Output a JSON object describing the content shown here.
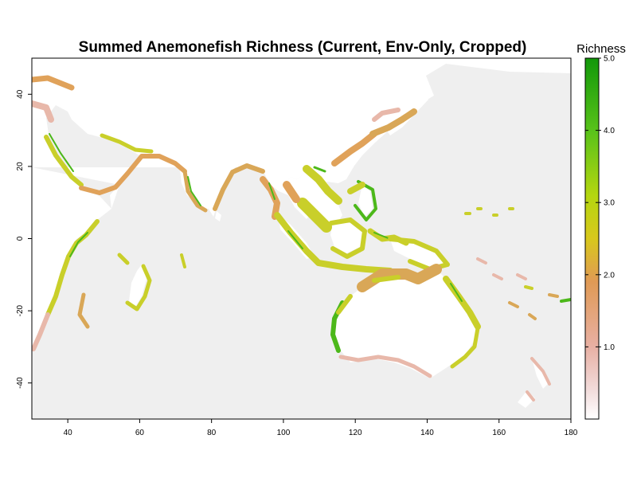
{
  "chart_data": {
    "type": "heatmap",
    "title": "Summed Anemonefish Richness (Current, Env-Only, Cropped)",
    "x_ticks": [
      40,
      60,
      80,
      100,
      120,
      140,
      160,
      180
    ],
    "y_ticks": [
      -40,
      -20,
      0,
      20,
      40
    ],
    "xlim": [
      30,
      180
    ],
    "ylim": [
      -50,
      50
    ],
    "legend": {
      "title": "Richness",
      "ticks": [
        "1.0",
        "2.0",
        "3.0",
        "4.0",
        "5.0"
      ],
      "range": [
        0,
        5
      ],
      "colors": [
        "#ffffff",
        "#f5e0df",
        "#e8a38f",
        "#e0a060",
        "#d9c51f",
        "#b8d80f",
        "#6ccc18",
        "#179e0b"
      ]
    },
    "colors": {
      "ocean": "#efefef",
      "land": "#ffffff",
      "low": "#e8b8aa",
      "mid": "#d9a757",
      "high": "#c9cf2a",
      "top": "#4cb81a"
    }
  }
}
